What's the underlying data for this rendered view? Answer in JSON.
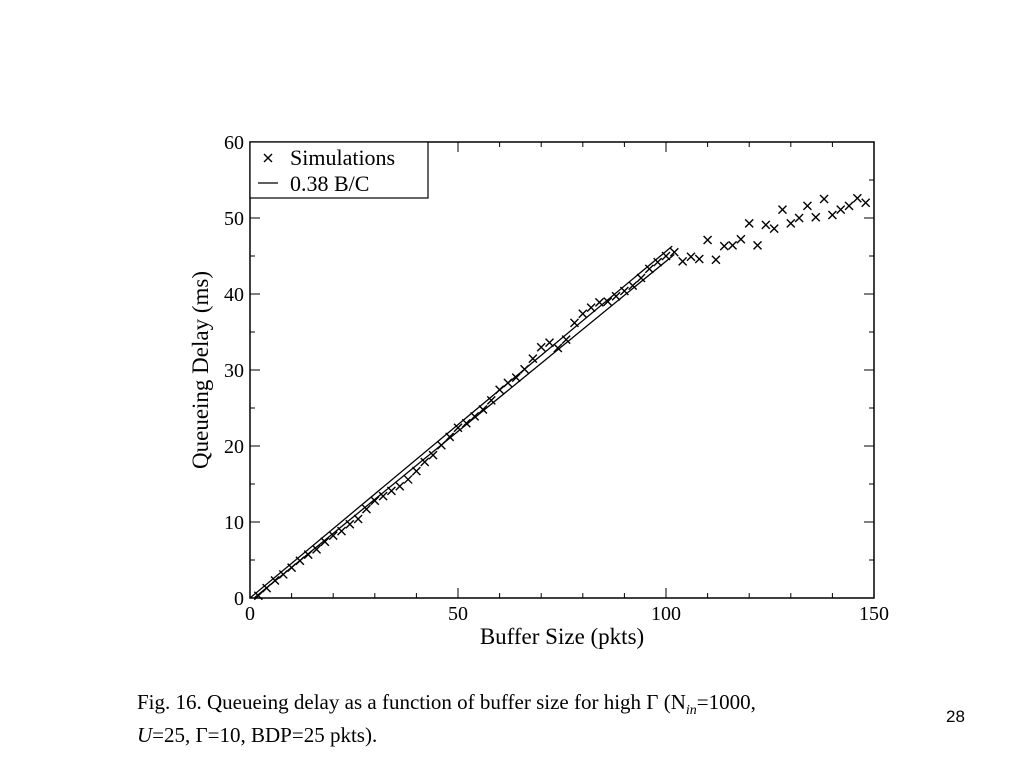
{
  "chart_data": {
    "type": "scatter",
    "xlabel": "Buffer Size (pkts)",
    "ylabel": "Queueing Delay (ms)",
    "xlim": [
      0,
      150
    ],
    "ylim": [
      0,
      60
    ],
    "xticks": [
      0,
      50,
      100,
      150
    ],
    "yticks": [
      0,
      10,
      20,
      30,
      40,
      50,
      60
    ],
    "grid": false,
    "legend_position": "top-left",
    "series": [
      {
        "name": "Simulations",
        "marker": "x",
        "x": [
          2,
          4,
          6,
          8,
          10,
          12,
          14,
          16,
          18,
          20,
          22,
          24,
          26,
          28,
          30,
          32,
          34,
          36,
          38,
          40,
          42,
          44,
          46,
          48,
          50,
          52,
          54,
          56,
          58,
          60,
          62,
          64,
          66,
          68,
          70,
          72,
          74,
          76,
          78,
          80,
          82,
          84,
          86,
          88,
          90,
          92,
          94,
          96,
          98,
          100,
          102,
          104,
          106,
          108,
          110,
          112,
          114,
          116,
          118,
          120,
          122,
          124,
          126,
          128,
          130,
          132,
          134,
          136,
          138,
          140,
          142,
          144,
          146,
          148
        ],
        "y": [
          0.3,
          1.3,
          2.3,
          3.1,
          4.0,
          4.9,
          5.7,
          6.4,
          7.4,
          8.2,
          8.8,
          9.7,
          10.4,
          11.7,
          12.8,
          13.4,
          14.1,
          14.7,
          15.6,
          16.7,
          17.9,
          18.8,
          20.1,
          21.2,
          22.4,
          23.0,
          23.9,
          24.8,
          26.0,
          27.4,
          28.3,
          29.0,
          30.1,
          31.5,
          33.0,
          33.6,
          32.9,
          34.0,
          36.2,
          37.4,
          38.2,
          38.9,
          39.0,
          39.7,
          40.4,
          41.1,
          42.1,
          43.3,
          44.2,
          45.0,
          45.5,
          44.3,
          44.9,
          44.6,
          47.1,
          44.5,
          46.3,
          46.4,
          47.2,
          49.3,
          46.4,
          49.1,
          48.6,
          51.1,
          49.3,
          50.0,
          51.6,
          50.1,
          52.5,
          50.4,
          51.1,
          51.6,
          52.6,
          52.0
        ]
      },
      {
        "name": "0.38 B/C",
        "type": "line",
        "x": [
          0,
          101.5
        ],
        "y": [
          0,
          46.3
        ]
      },
      {
        "name": "",
        "type": "line",
        "x": [
          1,
          102
        ],
        "y": [
          0,
          45.2
        ]
      }
    ]
  },
  "caption": {
    "line1": "Fig. 16.   Queueing delay as a function of buffer size for high Γ (N",
    "line1_sub": "in",
    "line1_end": "=1000,",
    "line2_U": "U",
    "line2_rest": "=25, Γ=10, BDP=25 pkts)."
  },
  "page_number": "28"
}
